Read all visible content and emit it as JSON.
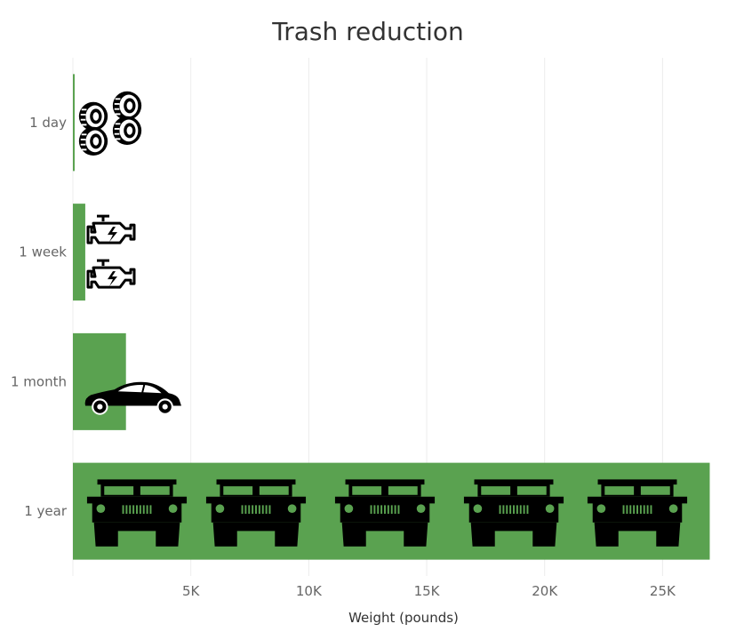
{
  "chart_data": {
    "type": "bar",
    "orientation": "horizontal",
    "title": "Trash reduction",
    "xlabel": "Weight (pounds)",
    "ylabel": "",
    "categories": [
      "1 day",
      "1 week",
      "1 month",
      "1 year"
    ],
    "values": [
      75,
      525,
      2250,
      27000
    ],
    "xlim": [
      0,
      28000
    ],
    "x_ticks": [
      5000,
      10000,
      15000,
      20000,
      25000
    ],
    "x_tick_labels": [
      "5K",
      "10K",
      "15K",
      "20K",
      "25K"
    ],
    "grid": true,
    "bar_color": "#5aa250",
    "pictograms": [
      {
        "category": "1 day",
        "icon": "tire-icon",
        "count": 4
      },
      {
        "category": "1 week",
        "icon": "engine-icon",
        "count": 2
      },
      {
        "category": "1 month",
        "icon": "car-icon",
        "count": 1
      },
      {
        "category": "1 year",
        "icon": "humvee-icon",
        "count": 5
      }
    ]
  }
}
